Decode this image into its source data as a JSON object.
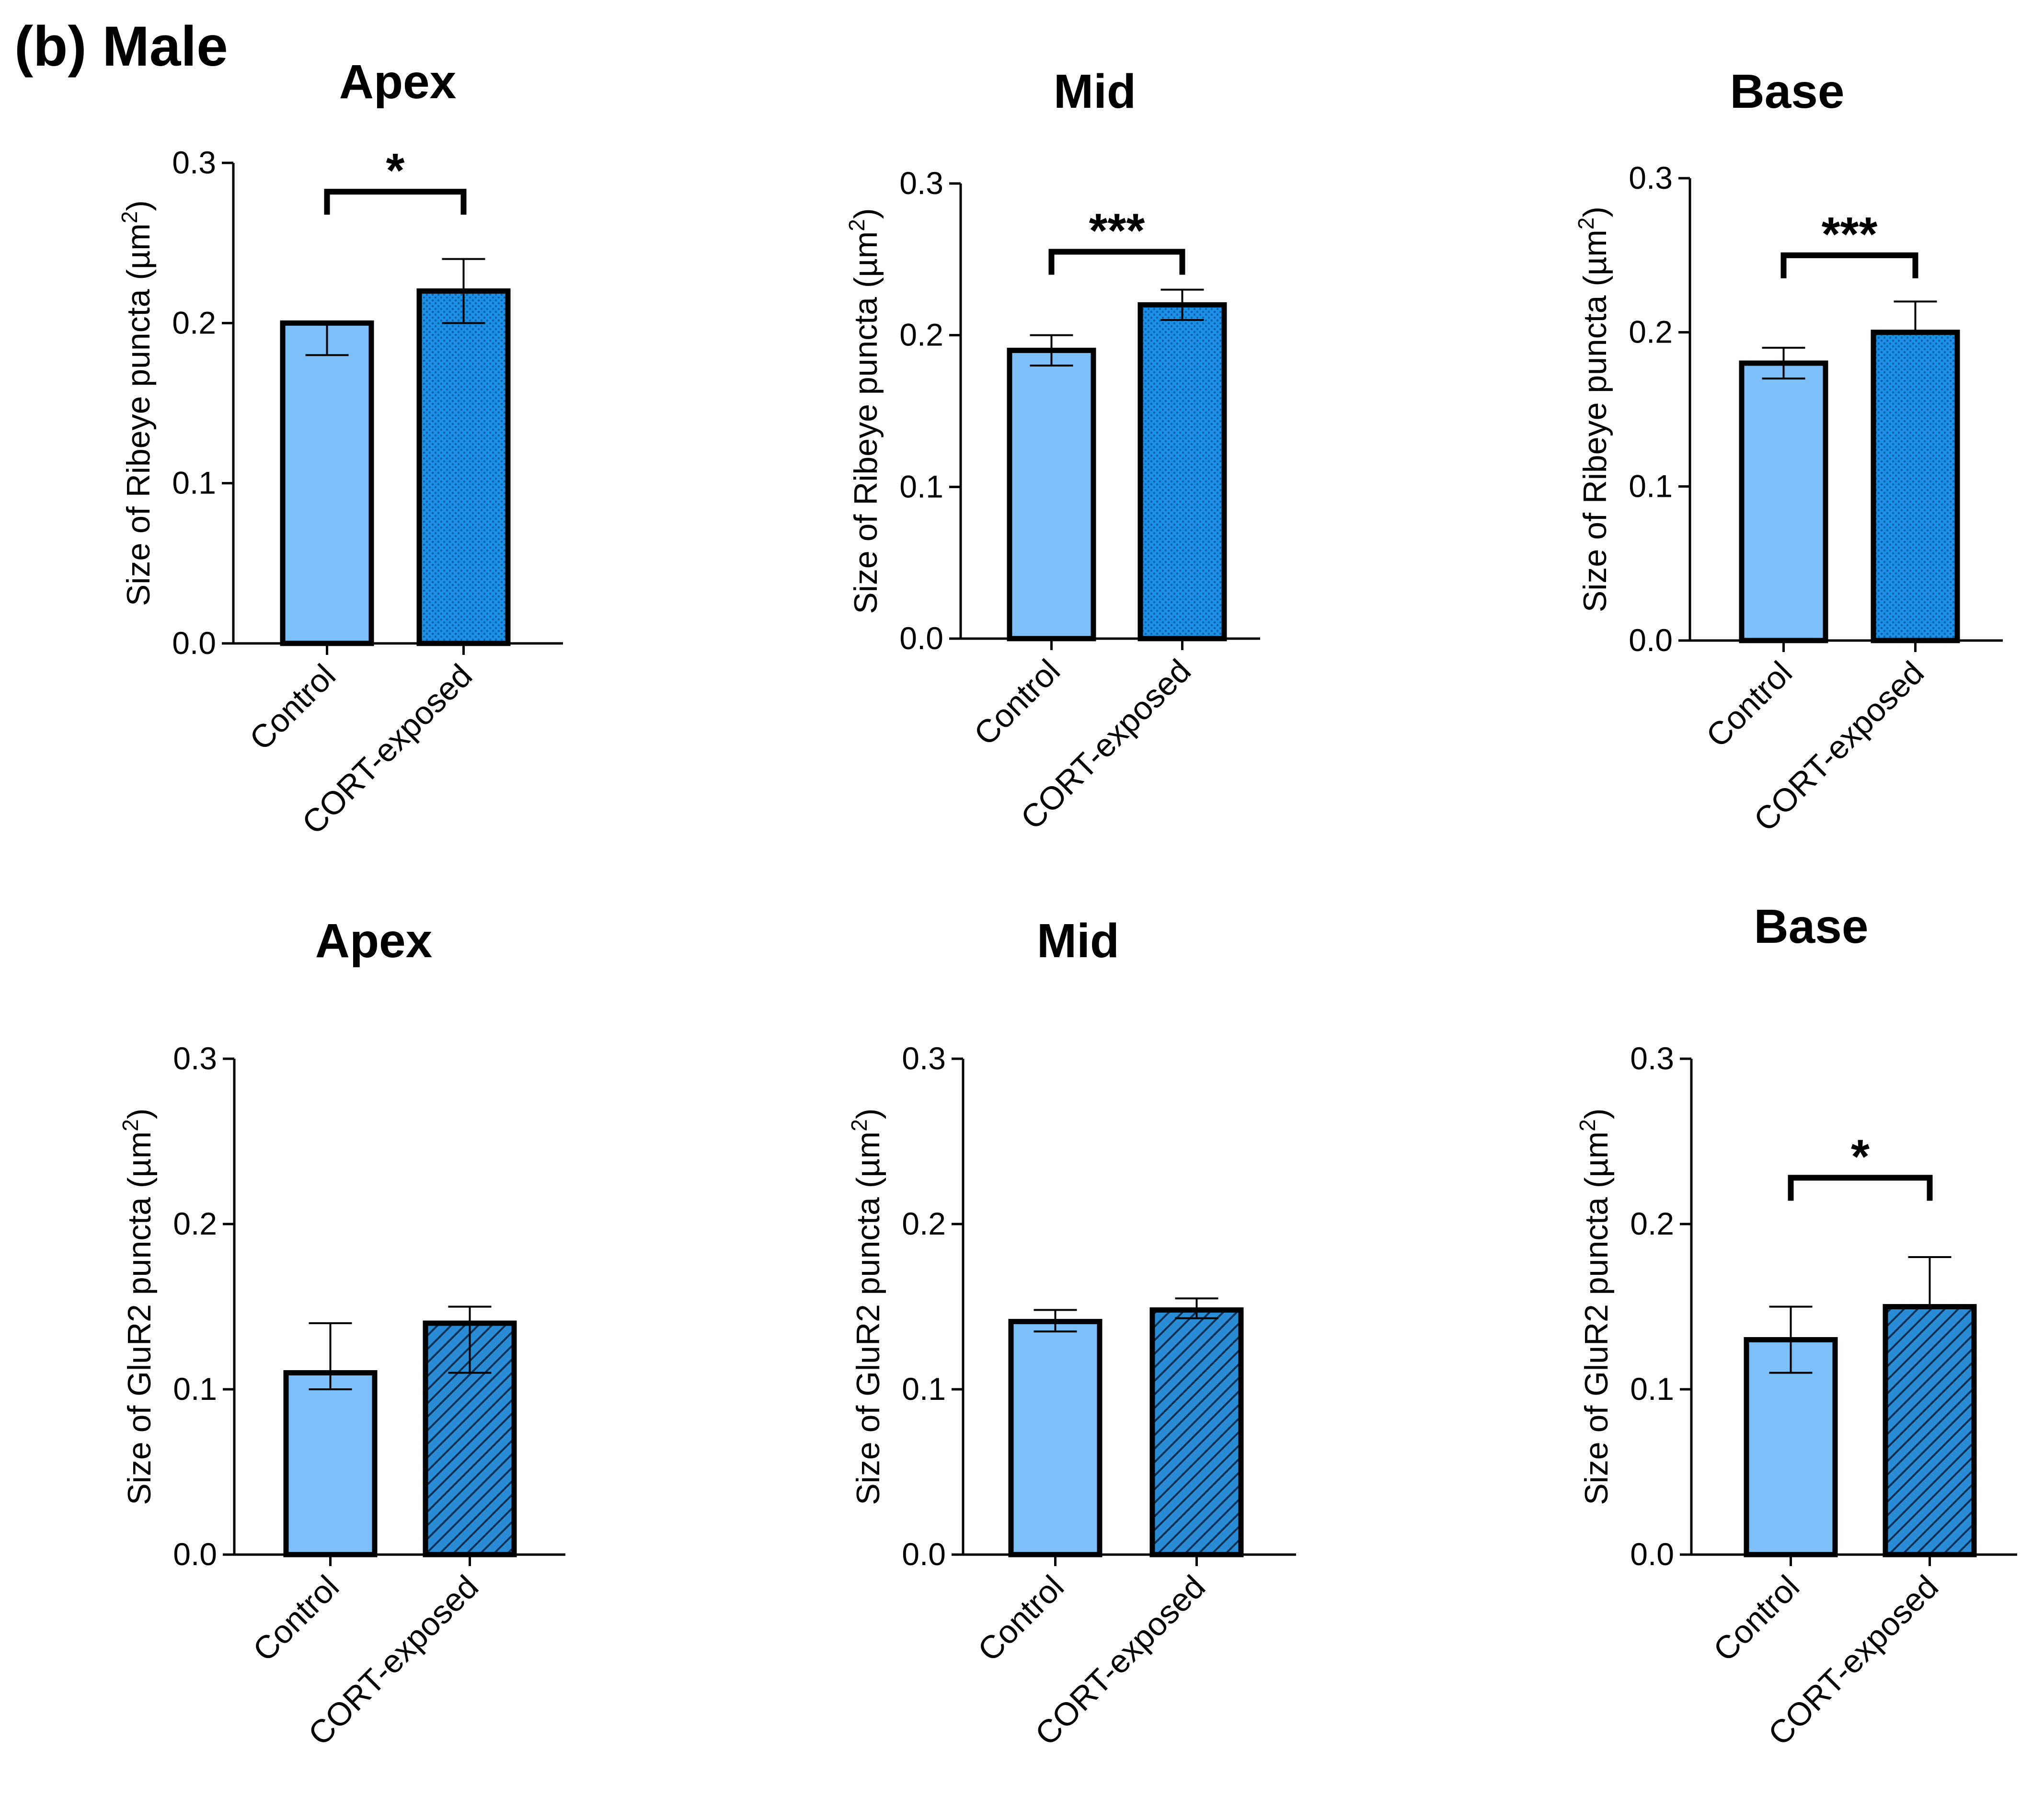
{
  "figure": {
    "panel_label": "(b) Male",
    "colors": {
      "control": "#7dbff9",
      "cort_ribeye": "#1a8fe3",
      "cort_glur2": "#2b8cd6",
      "stroke": "#000000"
    }
  },
  "chart_data": [
    {
      "type": "bar",
      "title": "Apex",
      "ylabel_prefix": "Size of Ribeye puncta (µm",
      "ylabel_sup": "2",
      "ylabel_suffix": ")",
      "categories": [
        "Control",
        "CORT-exposed"
      ],
      "values": [
        0.2,
        0.22
      ],
      "errors": [
        [
          0.18,
          0.2
        ],
        [
          0.2,
          0.24
        ]
      ],
      "pattern": "dots",
      "ylim": [
        0,
        0.3
      ],
      "yticks": [
        "0.0",
        "0.1",
        "0.2",
        "0.3"
      ],
      "significance": {
        "label": "*",
        "bracket_y": 0.282
      }
    },
    {
      "type": "bar",
      "title": "Mid",
      "ylabel_prefix": "Size of Ribeye puncta (µm",
      "ylabel_sup": "2",
      "ylabel_suffix": ")",
      "categories": [
        "Control",
        "CORT-exposed"
      ],
      "values": [
        0.19,
        0.22
      ],
      "errors": [
        [
          0.18,
          0.2
        ],
        [
          0.21,
          0.23
        ]
      ],
      "pattern": "dots",
      "ylim": [
        0,
        0.3
      ],
      "yticks": [
        "0.0",
        "0.1",
        "0.2",
        "0.3"
      ],
      "significance": {
        "label": "***",
        "bracket_y": 0.255
      }
    },
    {
      "type": "bar",
      "title": "Base",
      "ylabel_prefix": "Size of Ribeye puncta (µm",
      "ylabel_sup": "2",
      "ylabel_suffix": ")",
      "categories": [
        "Control",
        "CORT-exposed"
      ],
      "values": [
        0.18,
        0.2
      ],
      "errors": [
        [
          0.17,
          0.19
        ],
        [
          0.2,
          0.22
        ]
      ],
      "pattern": "dots",
      "ylim": [
        0,
        0.3
      ],
      "yticks": [
        "0.0",
        "0.1",
        "0.2",
        "0.3"
      ],
      "significance": {
        "label": "***",
        "bracket_y": 0.25
      }
    },
    {
      "type": "bar",
      "title": "Apex",
      "ylabel_prefix": "Size of GluR2 puncta (µm",
      "ylabel_sup": "2",
      "ylabel_suffix": ")",
      "categories": [
        "Control",
        "CORT-exposed"
      ],
      "values": [
        0.11,
        0.14
      ],
      "errors": [
        [
          0.1,
          0.14
        ],
        [
          0.11,
          0.15
        ]
      ],
      "pattern": "hatch",
      "ylim": [
        0,
        0.3
      ],
      "yticks": [
        "0.0",
        "0.1",
        "0.2",
        "0.3"
      ],
      "significance": null
    },
    {
      "type": "bar",
      "title": "Mid",
      "ylabel_prefix": "Size of GluR2 puncta (µm",
      "ylabel_sup": "2",
      "ylabel_suffix": ")",
      "categories": [
        "Control",
        "CORT-exposed"
      ],
      "values": [
        0.141,
        0.148
      ],
      "errors": [
        [
          0.135,
          0.148
        ],
        [
          0.143,
          0.155
        ]
      ],
      "pattern": "hatch",
      "ylim": [
        0,
        0.3
      ],
      "yticks": [
        "0.0",
        "0.1",
        "0.2",
        "0.3"
      ],
      "significance": null
    },
    {
      "type": "bar",
      "title": "Base",
      "ylabel_prefix": "Size of GluR2 puncta (µm",
      "ylabel_sup": "2",
      "ylabel_suffix": ")",
      "categories": [
        "Control",
        "CORT-exposed"
      ],
      "values": [
        0.13,
        0.15
      ],
      "errors": [
        [
          0.11,
          0.15
        ],
        [
          0.15,
          0.18
        ]
      ],
      "pattern": "hatch",
      "ylim": [
        0,
        0.3
      ],
      "yticks": [
        "0.0",
        "0.1",
        "0.2",
        "0.3"
      ],
      "significance": {
        "label": "*",
        "bracket_y": 0.228
      }
    }
  ]
}
